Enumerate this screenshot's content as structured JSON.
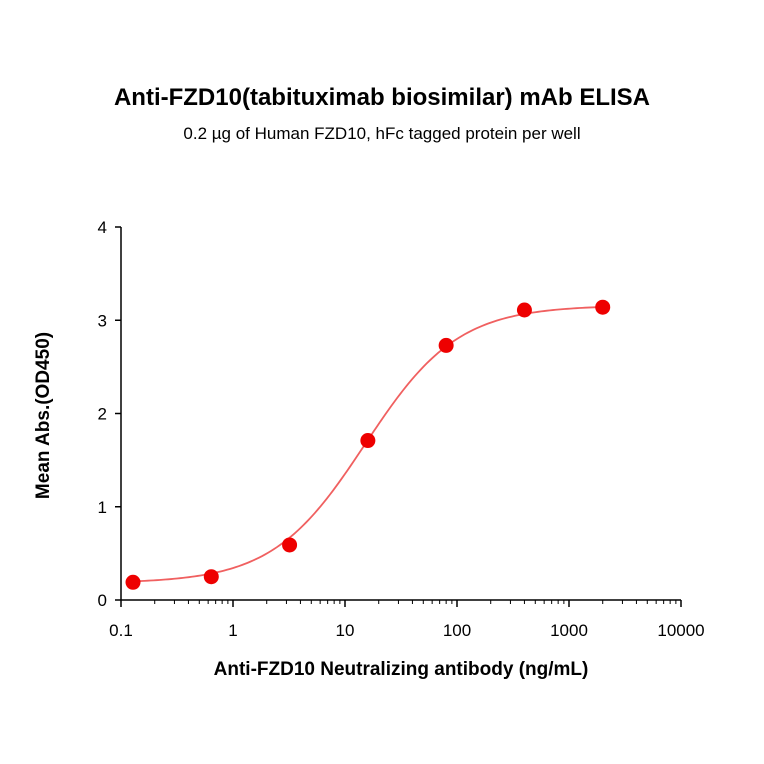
{
  "chart_data": {
    "type": "scatter",
    "title": "Anti-FZD10(tabituximab biosimilar) mAb ELISA",
    "subtitle": "0.2 µg of Human FZD10, hFc tagged protein per well",
    "xlabel": "Anti-FZD10 Neutralizing antibody  (ng/mL)",
    "ylabel": "Mean Abs.(OD450)",
    "x_scale": "log",
    "xlim": [
      0.1,
      10000
    ],
    "ylim": [
      0,
      4
    ],
    "x_ticks": [
      0.1,
      1,
      10,
      100,
      1000,
      10000
    ],
    "x_tick_labels": [
      "0.1",
      "1",
      "10",
      "100",
      "1000",
      "10000"
    ],
    "y_ticks": [
      0,
      1,
      2,
      3,
      4
    ],
    "y_tick_labels": [
      "0",
      "1",
      "2",
      "3",
      "4"
    ],
    "grid": false,
    "series": [
      {
        "x": [
          0.128,
          0.64,
          3.2,
          16,
          80,
          400,
          2000
        ],
        "y": [
          0.19,
          0.25,
          0.59,
          1.71,
          2.73,
          3.11,
          3.14
        ],
        "color": "#ee0000",
        "fit": "4PL",
        "fit_color": "#f06060"
      }
    ]
  }
}
